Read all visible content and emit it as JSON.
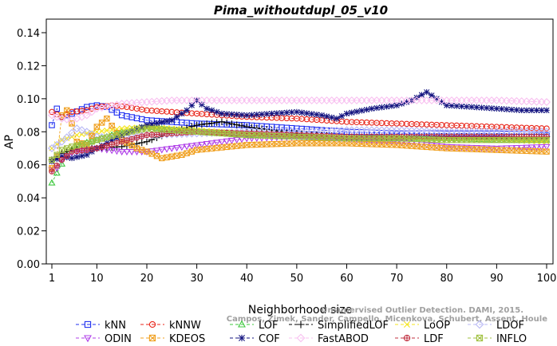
{
  "chart_data": {
    "type": "line",
    "title": "Pima_withoutdupl_05_v10",
    "xlabel": "Neighborhood size",
    "ylabel": "AP",
    "xlim": [
      1,
      100
    ],
    "ylim": [
      0.0,
      0.14
    ],
    "x_ticks": [
      1,
      10,
      20,
      30,
      40,
      50,
      60,
      70,
      80,
      90,
      100
    ],
    "y_ticks": [
      "0.00",
      "0.02",
      "0.04",
      "0.06",
      "0.08",
      "0.10",
      "0.12",
      "0.14"
    ],
    "grid": false,
    "legend_position": "bottom",
    "credit_lines": [
      "Unsupervised Outlier Detection. DAMI, 2015.",
      "Campos, Zimek, Sander, Campello, Micenkova, Schubert, Assent, Houle"
    ],
    "series": [
      {
        "name": "kNN",
        "color": "#1f2ff0",
        "marker": "square",
        "knots": [
          [
            1,
            0.084
          ],
          [
            2,
            0.094
          ],
          [
            3,
            0.089
          ],
          [
            5,
            0.091
          ],
          [
            8,
            0.095
          ],
          [
            10,
            0.096
          ],
          [
            12,
            0.095
          ],
          [
            15,
            0.09
          ],
          [
            20,
            0.087
          ],
          [
            25,
            0.086
          ],
          [
            30,
            0.085
          ],
          [
            40,
            0.084
          ],
          [
            50,
            0.082
          ],
          [
            60,
            0.08
          ],
          [
            70,
            0.079
          ],
          [
            80,
            0.079
          ],
          [
            90,
            0.079
          ],
          [
            100,
            0.078
          ]
        ]
      },
      {
        "name": "kNNW",
        "color": "#e8251a",
        "marker": "circle",
        "knots": [
          [
            1,
            0.092
          ],
          [
            3,
            0.089
          ],
          [
            5,
            0.092
          ],
          [
            8,
            0.093
          ],
          [
            10,
            0.095
          ],
          [
            13,
            0.096
          ],
          [
            16,
            0.095
          ],
          [
            20,
            0.093
          ],
          [
            25,
            0.092
          ],
          [
            30,
            0.091
          ],
          [
            40,
            0.089
          ],
          [
            50,
            0.088
          ],
          [
            60,
            0.086
          ],
          [
            70,
            0.085
          ],
          [
            80,
            0.084
          ],
          [
            90,
            0.083
          ],
          [
            100,
            0.082
          ]
        ]
      },
      {
        "name": "LOF",
        "color": "#3ec83e",
        "marker": "triangle",
        "knots": [
          [
            1,
            0.049
          ],
          [
            2,
            0.055
          ],
          [
            4,
            0.066
          ],
          [
            6,
            0.072
          ],
          [
            10,
            0.075
          ],
          [
            15,
            0.08
          ],
          [
            20,
            0.083
          ],
          [
            25,
            0.081
          ],
          [
            30,
            0.08
          ],
          [
            40,
            0.078
          ],
          [
            50,
            0.077
          ],
          [
            60,
            0.076
          ],
          [
            70,
            0.076
          ],
          [
            80,
            0.076
          ],
          [
            90,
            0.075
          ],
          [
            100,
            0.075
          ]
        ]
      },
      {
        "name": "SimplifiedLOF",
        "color": "#000000",
        "marker": "plus",
        "knots": [
          [
            1,
            0.063
          ],
          [
            3,
            0.067
          ],
          [
            5,
            0.069
          ],
          [
            8,
            0.07
          ],
          [
            10,
            0.07
          ],
          [
            15,
            0.071
          ],
          [
            20,
            0.074
          ],
          [
            25,
            0.08
          ],
          [
            30,
            0.084
          ],
          [
            35,
            0.086
          ],
          [
            40,
            0.083
          ],
          [
            50,
            0.079
          ],
          [
            60,
            0.077
          ],
          [
            70,
            0.077
          ],
          [
            80,
            0.077
          ],
          [
            90,
            0.077
          ],
          [
            100,
            0.077
          ]
        ]
      },
      {
        "name": "LoOP",
        "color": "#f5e51a",
        "marker": "x",
        "knots": [
          [
            1,
            0.07
          ],
          [
            3,
            0.075
          ],
          [
            6,
            0.078
          ],
          [
            10,
            0.08
          ],
          [
            15,
            0.082
          ],
          [
            20,
            0.083
          ],
          [
            25,
            0.082
          ],
          [
            30,
            0.081
          ],
          [
            40,
            0.079
          ],
          [
            50,
            0.077
          ],
          [
            60,
            0.076
          ],
          [
            70,
            0.076
          ],
          [
            80,
            0.075
          ],
          [
            90,
            0.075
          ],
          [
            100,
            0.074
          ]
        ]
      },
      {
        "name": "LDOF",
        "color": "#b8b8f5",
        "marker": "diamond",
        "knots": [
          [
            1,
            0.07
          ],
          [
            3,
            0.074
          ],
          [
            6,
            0.082
          ],
          [
            8,
            0.08
          ],
          [
            10,
            0.077
          ],
          [
            15,
            0.076
          ],
          [
            20,
            0.078
          ],
          [
            30,
            0.079
          ],
          [
            40,
            0.08
          ],
          [
            50,
            0.08
          ],
          [
            60,
            0.081
          ],
          [
            70,
            0.081
          ],
          [
            80,
            0.08
          ],
          [
            90,
            0.08
          ],
          [
            100,
            0.08
          ]
        ]
      },
      {
        "name": "ODIN",
        "color": "#b040e8",
        "marker": "down-triangle",
        "knots": [
          [
            1,
            0.057
          ],
          [
            2,
            0.058
          ],
          [
            3,
            0.063
          ],
          [
            5,
            0.067
          ],
          [
            8,
            0.069
          ],
          [
            10,
            0.07
          ],
          [
            15,
            0.068
          ],
          [
            20,
            0.068
          ],
          [
            25,
            0.07
          ],
          [
            30,
            0.072
          ],
          [
            40,
            0.076
          ],
          [
            50,
            0.077
          ],
          [
            60,
            0.076
          ],
          [
            70,
            0.074
          ],
          [
            80,
            0.071
          ],
          [
            90,
            0.07
          ],
          [
            100,
            0.071
          ]
        ]
      },
      {
        "name": "KDEOS",
        "color": "#f0a020",
        "marker": "square-x",
        "knots": [
          [
            1,
            0.058
          ],
          [
            2,
            0.065
          ],
          [
            3,
            0.09
          ],
          [
            4,
            0.093
          ],
          [
            5,
            0.085
          ],
          [
            6,
            0.074
          ],
          [
            8,
            0.072
          ],
          [
            10,
            0.083
          ],
          [
            12,
            0.088
          ],
          [
            15,
            0.075
          ],
          [
            18,
            0.07
          ],
          [
            20,
            0.068
          ],
          [
            23,
            0.064
          ],
          [
            27,
            0.066
          ],
          [
            30,
            0.069
          ],
          [
            40,
            0.072
          ],
          [
            50,
            0.073
          ],
          [
            60,
            0.073
          ],
          [
            70,
            0.072
          ],
          [
            80,
            0.07
          ],
          [
            90,
            0.069
          ],
          [
            100,
            0.068
          ]
        ]
      },
      {
        "name": "COF",
        "color": "#141480",
        "marker": "asterisk",
        "knots": [
          [
            1,
            0.062
          ],
          [
            3,
            0.065
          ],
          [
            5,
            0.064
          ],
          [
            8,
            0.066
          ],
          [
            10,
            0.07
          ],
          [
            15,
            0.078
          ],
          [
            20,
            0.084
          ],
          [
            25,
            0.087
          ],
          [
            28,
            0.093
          ],
          [
            30,
            0.099
          ],
          [
            32,
            0.094
          ],
          [
            35,
            0.091
          ],
          [
            40,
            0.09
          ],
          [
            45,
            0.091
          ],
          [
            50,
            0.092
          ],
          [
            55,
            0.09
          ],
          [
            58,
            0.088
          ],
          [
            60,
            0.091
          ],
          [
            65,
            0.094
          ],
          [
            70,
            0.096
          ],
          [
            73,
            0.099
          ],
          [
            76,
            0.104
          ],
          [
            78,
            0.1
          ],
          [
            80,
            0.096
          ],
          [
            85,
            0.095
          ],
          [
            90,
            0.094
          ],
          [
            95,
            0.093
          ],
          [
            100,
            0.093
          ]
        ]
      },
      {
        "name": "FastABOD",
        "color": "#f8c0f0",
        "marker": "diamond",
        "knots": [
          [
            1,
            0.09
          ],
          [
            3,
            0.088
          ],
          [
            5,
            0.087
          ],
          [
            8,
            0.09
          ],
          [
            10,
            0.094
          ],
          [
            15,
            0.097
          ],
          [
            20,
            0.098
          ],
          [
            25,
            0.099
          ],
          [
            30,
            0.099
          ],
          [
            40,
            0.099
          ],
          [
            50,
            0.099
          ],
          [
            60,
            0.099
          ],
          [
            70,
            0.099
          ],
          [
            80,
            0.099
          ],
          [
            90,
            0.099
          ],
          [
            100,
            0.098
          ]
        ]
      },
      {
        "name": "LDF",
        "color": "#c03040",
        "marker": "circle-plus",
        "knots": [
          [
            1,
            0.056
          ],
          [
            3,
            0.063
          ],
          [
            5,
            0.068
          ],
          [
            8,
            0.069
          ],
          [
            10,
            0.07
          ],
          [
            15,
            0.074
          ],
          [
            20,
            0.078
          ],
          [
            30,
            0.08
          ],
          [
            40,
            0.079
          ],
          [
            50,
            0.078
          ],
          [
            60,
            0.077
          ],
          [
            70,
            0.077
          ],
          [
            80,
            0.077
          ],
          [
            90,
            0.077
          ],
          [
            100,
            0.077
          ]
        ]
      },
      {
        "name": "INFLO",
        "color": "#a0c040",
        "marker": "hourglass",
        "knots": [
          [
            1,
            0.063
          ],
          [
            3,
            0.069
          ],
          [
            5,
            0.071
          ],
          [
            8,
            0.073
          ],
          [
            10,
            0.075
          ],
          [
            15,
            0.079
          ],
          [
            20,
            0.082
          ],
          [
            30,
            0.08
          ],
          [
            40,
            0.078
          ],
          [
            50,
            0.077
          ],
          [
            60,
            0.076
          ],
          [
            70,
            0.076
          ],
          [
            80,
            0.075
          ],
          [
            90,
            0.075
          ],
          [
            100,
            0.075
          ]
        ]
      }
    ]
  }
}
